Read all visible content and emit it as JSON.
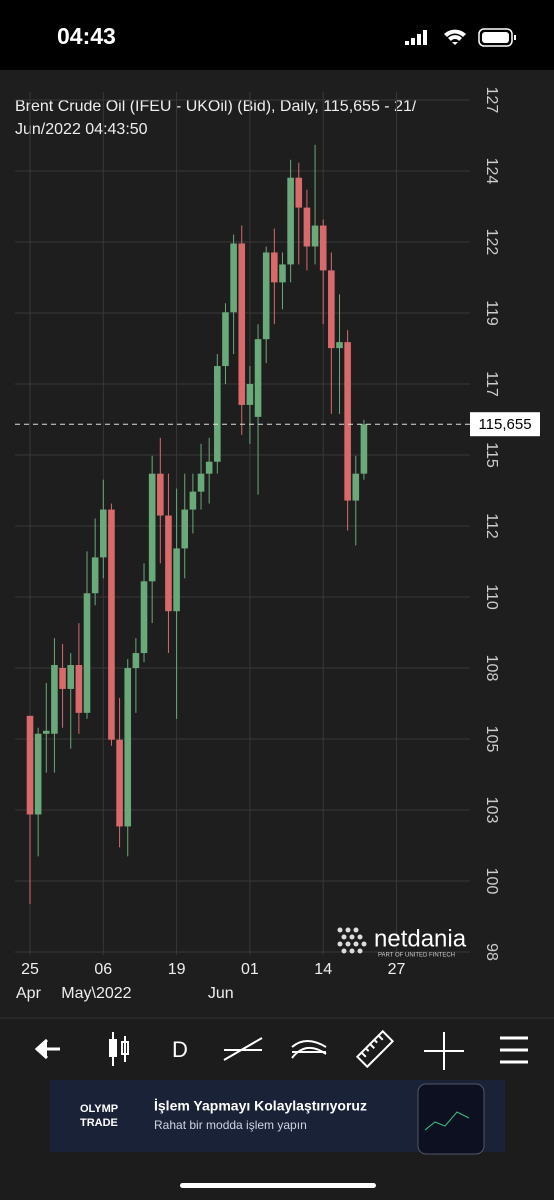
{
  "status_bar": {
    "time": "04:43"
  },
  "chart_data": {
    "type": "candlestick",
    "title": [
      "Brent Crude Oil (IFEU - UKOil) (Bid), Daily, 115,655 - 21/",
      "Jun/2022 04:43:50"
    ],
    "open": [
      105.9,
      102.6,
      105.3,
      105.3,
      107.5,
      106.8,
      107.6,
      106,
      110,
      111.2,
      112.8,
      105.1,
      102.2,
      107.5,
      108,
      110.4,
      114,
      112.6,
      109.4,
      111.5,
      112.8,
      113.4,
      114,
      114.4,
      117.6,
      119.4,
      121.7,
      116.3,
      115.9,
      118.5,
      121.4,
      120.4,
      121,
      123.9,
      122.9,
      121.6,
      122.3,
      120.8,
      118.2,
      118.4,
      113.1,
      114
    ],
    "high": [
      105.9,
      105.5,
      107,
      108.5,
      108.3,
      108,
      109,
      111.4,
      112.5,
      113.8,
      113,
      106.5,
      107.8,
      108.5,
      111,
      114.6,
      115.2,
      114,
      113.5,
      114,
      114,
      115,
      115.2,
      118,
      119.7,
      122,
      122.3,
      117.6,
      119,
      121.6,
      122.2,
      121.4,
      124.5,
      124.4,
      123.5,
      125,
      122.5,
      121.4,
      120,
      118.8,
      114.6,
      115.8
    ],
    "low": [
      99.6,
      101.2,
      104,
      104,
      105.5,
      104.8,
      105.3,
      105.8,
      109.6,
      110.5,
      104.9,
      101.5,
      101.2,
      106,
      107.7,
      109,
      111,
      108,
      105.8,
      110.5,
      112,
      112.8,
      113,
      114,
      117,
      118,
      115.3,
      115,
      113.3,
      117.7,
      119,
      119.5,
      120.4,
      121,
      120.8,
      121,
      119,
      116,
      116,
      112.1,
      111.6,
      113.8
    ],
    "close": [
      102.6,
      105.3,
      105.4,
      107.6,
      106.8,
      107.6,
      106,
      110,
      111.2,
      112.8,
      105.1,
      102.2,
      107.5,
      108,
      110.4,
      114,
      112.6,
      109.4,
      111.5,
      112.8,
      113.4,
      114,
      114.4,
      117.6,
      119.4,
      121.7,
      116.3,
      117,
      118.5,
      121.4,
      120.4,
      121,
      123.9,
      122.9,
      121.6,
      122.3,
      120.8,
      118.2,
      118.4,
      113.1,
      114,
      115.655
    ],
    "up_color": "#6aa97a",
    "down_color": "#d86a6c",
    "ylim": [
      97.9,
      126.6
    ],
    "yticks": [
      {
        "value": 98,
        "label": "98"
      },
      {
        "value": 100.375,
        "label": "100"
      },
      {
        "value": 102.75,
        "label": "103"
      },
      {
        "value": 105.125,
        "label": "105"
      },
      {
        "value": 107.5,
        "label": "108"
      },
      {
        "value": 109.875,
        "label": "110"
      },
      {
        "value": 112.25,
        "label": "112"
      },
      {
        "value": 114.625,
        "label": "115"
      },
      {
        "value": 117,
        "label": "117"
      },
      {
        "value": 119.375,
        "label": "119"
      },
      {
        "value": 121.75,
        "label": "122"
      },
      {
        "value": 124.125,
        "label": "124"
      },
      {
        "value": 126.5,
        "label": "127"
      }
    ],
    "x_labels": [
      {
        "day": "25",
        "month": "Apr"
      },
      {
        "day": "06",
        "month": "May\\2022"
      },
      {
        "day": "19"
      },
      {
        "day": "01",
        "month": "Jun"
      },
      {
        "day": "14"
      },
      {
        "day": "27"
      }
    ],
    "last_price": {
      "value": 115.655,
      "label": "115,655"
    },
    "grid": true,
    "watermark": {
      "brand": "netdania",
      "sub": "PART OF UNITED FINTECH"
    }
  },
  "toolbar": {
    "period": "D"
  },
  "ad": {
    "brand": [
      "OLYMP",
      "TRADE"
    ],
    "headline": "İşlem Yapmayı Kolaylaştırıyoruz",
    "sub": "Rahat bir modda işlem yapın"
  }
}
